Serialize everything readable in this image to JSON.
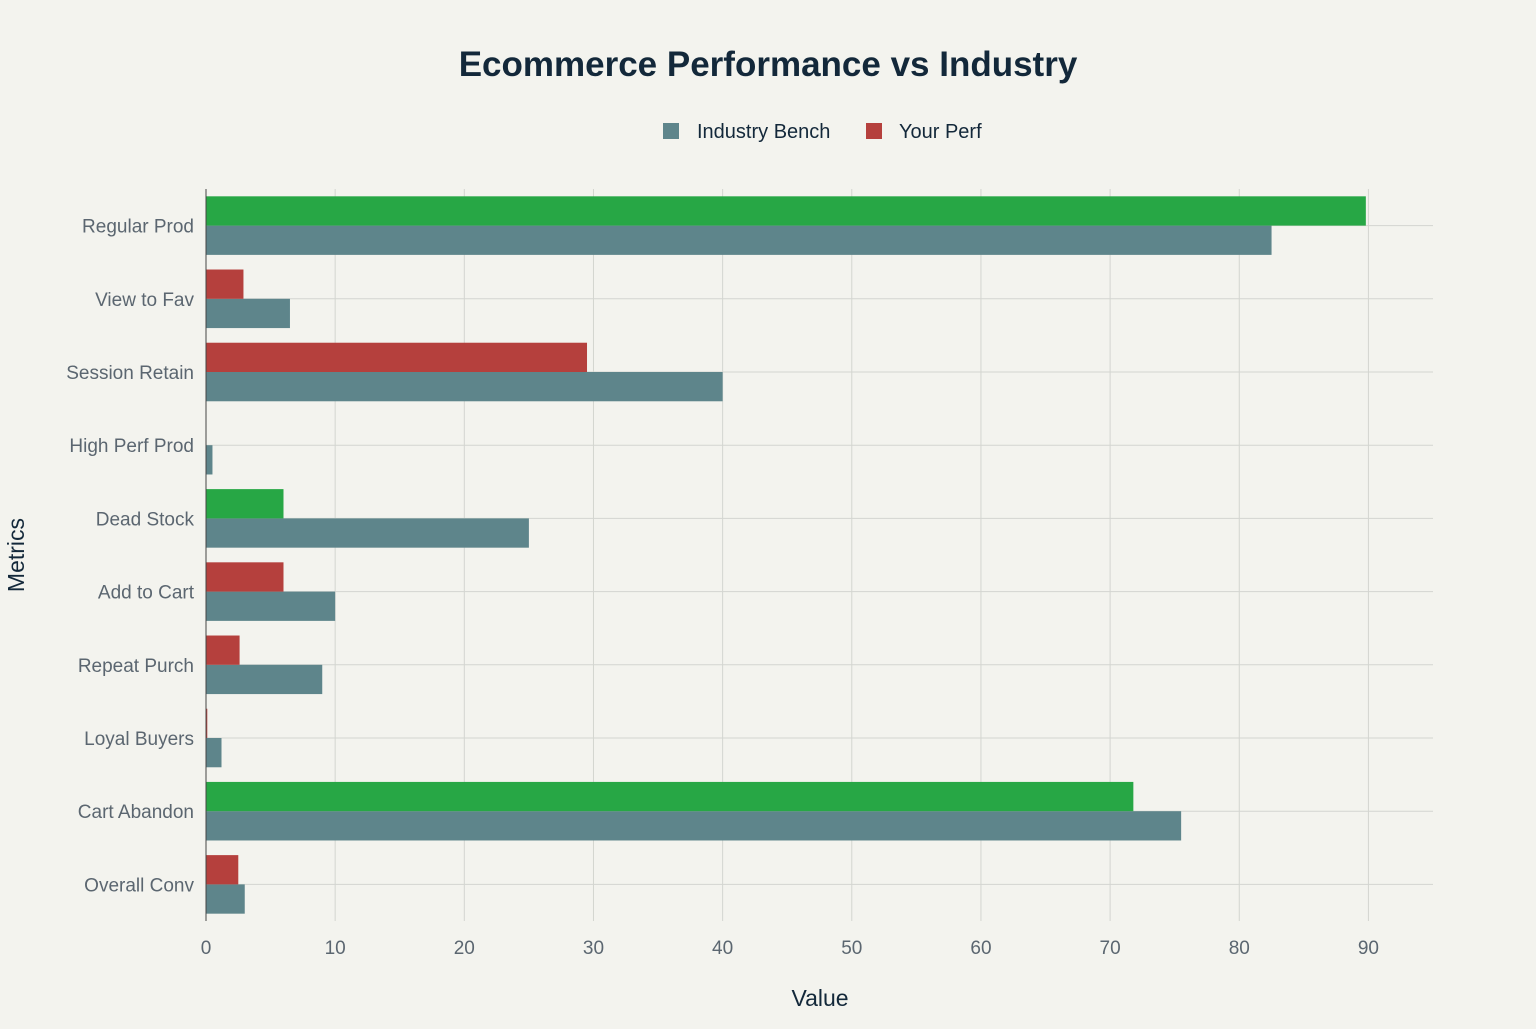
{
  "chart_data": {
    "type": "bar",
    "orientation": "horizontal",
    "title": "Ecommerce Performance vs Industry",
    "xlabel": "Value",
    "ylabel": "Metrics",
    "xlim": [
      0,
      95
    ],
    "xticks": [
      0,
      10,
      20,
      30,
      40,
      50,
      60,
      70,
      80,
      90
    ],
    "grid": true,
    "legend_position": "top-center",
    "categories": [
      "Regular Prod",
      "View to Fav",
      "Session Retain",
      "High Perf Prod",
      "Dead Stock",
      "Add to Cart",
      "Repeat Purch",
      "Loyal Buyers",
      "Cart Abandon",
      "Overall Conv"
    ],
    "series": [
      {
        "name": "Industry Bench",
        "color": "#5e858b",
        "values": [
          82.5,
          6.5,
          40,
          0.5,
          25,
          10,
          9,
          1.2,
          75.5,
          3
        ]
      },
      {
        "name": "Your Perf",
        "color": "#b5403d",
        "highlight_color": "#27a745",
        "values": [
          89.8,
          2.9,
          29.5,
          0,
          6,
          6,
          2.6,
          0.1,
          71.8,
          2.5
        ],
        "highlighted": [
          true,
          false,
          false,
          false,
          true,
          false,
          false,
          false,
          true,
          false
        ]
      }
    ]
  }
}
